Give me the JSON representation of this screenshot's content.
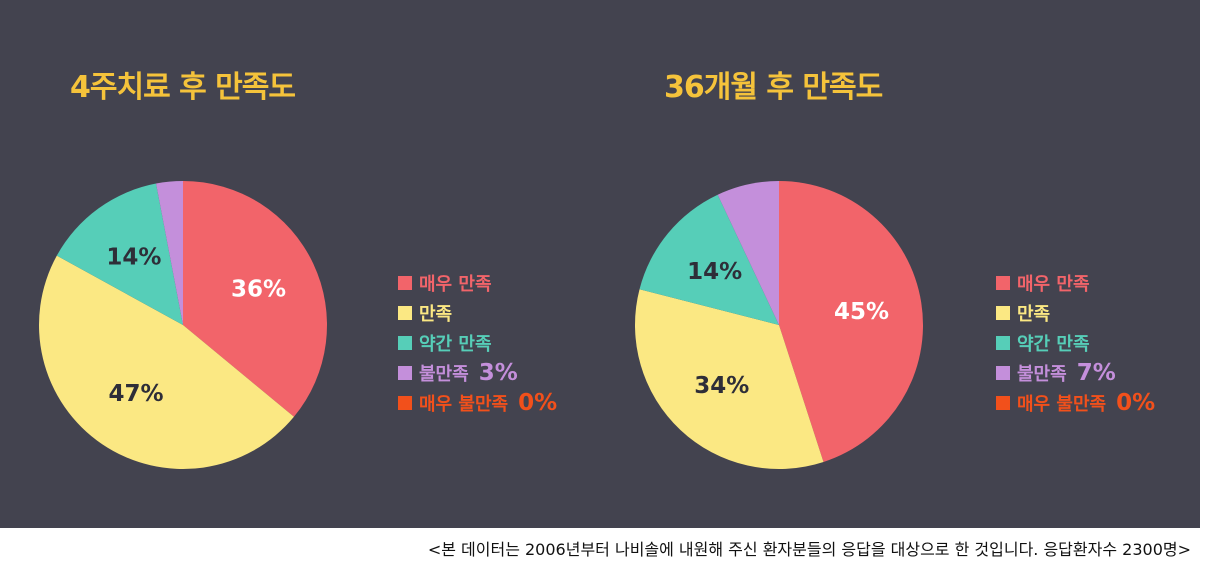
{
  "chart_data": [
    {
      "type": "pie",
      "title": "4주치료 후 만족도",
      "categories": [
        "매우 만족",
        "만족",
        "약간 만족",
        "불만족",
        "매우 불만족"
      ],
      "values": [
        36,
        47,
        14,
        3,
        0
      ],
      "value_labels": [
        "36%",
        "47%",
        "14%",
        "",
        ""
      ],
      "legend_placement": "right"
    },
    {
      "type": "pie",
      "title": "36개월 후 만족도",
      "categories": [
        "매우 만족",
        "만족",
        "약간 만족",
        "불만족",
        "매우 불만족"
      ],
      "values": [
        45,
        34,
        14,
        7,
        0
      ],
      "value_labels": [
        "45%",
        "34%",
        "14%",
        "",
        ""
      ],
      "legend_placement": "right"
    }
  ],
  "legend_left": {
    "items": [
      {
        "label": "매우 만족",
        "value": ""
      },
      {
        "label": "만족",
        "value": ""
      },
      {
        "label": "약간 만족",
        "value": ""
      },
      {
        "label": "불만족",
        "value": "3%"
      },
      {
        "label": "매우 불만족",
        "value": "0%"
      }
    ]
  },
  "legend_right": {
    "items": [
      {
        "label": "매우 만족",
        "value": ""
      },
      {
        "label": "만족",
        "value": ""
      },
      {
        "label": "약간 만족",
        "value": ""
      },
      {
        "label": "불만족",
        "value": "7%"
      },
      {
        "label": "매우 불만족",
        "value": "0%"
      }
    ]
  },
  "colors": {
    "background": "#43434f",
    "title": "#f5c33b",
    "very_satisfied": "#f2646a",
    "satisfied": "#fbe883",
    "somewhat_satisfied": "#56ceb8",
    "dissatisfied": "#c48fdb",
    "very_dissatisfied": "#f2501b",
    "label_on_red": "#ffffff",
    "label_on_light": "#2e2e38"
  },
  "footnote": "<본 데이터는 2006년부터 나비솔에 내원해 주신 환자분들의 응답을 대상으로 한 것입니다. 응답환자수 2300명>"
}
